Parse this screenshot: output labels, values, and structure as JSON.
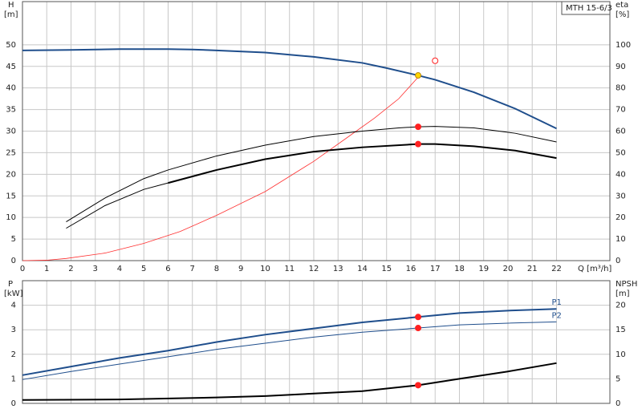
{
  "chart_data": [
    {
      "type": "line",
      "title": "MTH 15-6/3",
      "xlabel": "Q [m³/h]",
      "ylabel": "H",
      "yunit": "[m]",
      "y2label": "eta",
      "y2unit": "[%]",
      "xlim": [
        0,
        24.2
      ],
      "xticks": [
        0,
        1,
        2,
        3,
        4,
        5,
        6,
        7,
        8,
        9,
        10,
        11,
        12,
        13,
        14,
        15,
        16,
        17,
        18,
        19,
        20,
        21,
        22
      ],
      "xtick_labels": true,
      "ylim": [
        0,
        60
      ],
      "yticks": [
        0,
        5,
        10,
        15,
        20,
        25,
        30,
        35,
        40,
        45,
        50
      ],
      "y2lim": [
        0,
        120
      ],
      "y2ticks": [
        0,
        10,
        20,
        30,
        40,
        50,
        60,
        70,
        80,
        90,
        100
      ],
      "grid": true,
      "series": [
        {
          "color": "#1f4e8c",
          "width": 2,
          "axis": "y",
          "x": [
            0,
            2,
            4,
            6,
            7,
            8,
            10,
            12,
            14,
            15,
            16.3,
            17,
            18.6,
            20.3,
            22
          ],
          "values": [
            48.7,
            48.8,
            49,
            49,
            48.9,
            48.7,
            48.2,
            47.2,
            45.8,
            44.6,
            42.9,
            41.9,
            39,
            35.2,
            30.6
          ]
        },
        {
          "color": "#ff3030",
          "width": 0.8,
          "axis": "y2",
          "x": [
            0,
            1,
            1.8,
            3.4,
            5,
            6.5,
            8,
            10,
            12,
            13.5,
            14.5,
            15.5,
            16.3
          ],
          "values": [
            0,
            0.2,
            1,
            3.5,
            8,
            13.5,
            21,
            32,
            46,
            58,
            66,
            75,
            85
          ]
        },
        {
          "color": "#000000",
          "width": 1,
          "axis": "y2",
          "x": [
            1.8,
            3.4,
            5,
            6,
            8,
            10,
            12,
            14,
            15.5,
            16.3,
            17,
            18.6,
            20.3,
            22
          ],
          "values": [
            18,
            29,
            38,
            42,
            48.5,
            53.5,
            57.5,
            60,
            61.5,
            62,
            62.2,
            61.5,
            59,
            55
          ]
        },
        {
          "color": "#000000",
          "width": 1,
          "axis": "y2",
          "x": [
            1.8,
            3.4,
            5,
            6
          ],
          "values": [
            15,
            25.5,
            33,
            36
          ]
        },
        {
          "color": "#000000",
          "width": 2,
          "axis": "y2",
          "x": [
            6,
            8,
            10,
            12,
            14,
            16.3,
            17,
            18.6,
            20.3,
            22
          ],
          "values": [
            36,
            42,
            47,
            50.5,
            52.5,
            54,
            54,
            53,
            51,
            47.5
          ]
        },
        {
          "color": "#ffd700",
          "marker": "dot",
          "axis": "y",
          "x": [
            16.3
          ],
          "values": [
            42.9
          ]
        },
        {
          "color": "#ff2020",
          "marker": "dot",
          "axis": "y2",
          "x": [
            16.3,
            16.3
          ],
          "values": [
            62,
            54
          ]
        },
        {
          "color": "#ff2020",
          "marker": "hollow",
          "axis": "y",
          "x": [
            17
          ],
          "values": [
            46.3
          ]
        }
      ]
    },
    {
      "type": "line",
      "ylabel": "P",
      "yunit": "[kW]",
      "y2label": "NPSH",
      "y2unit": "[m]",
      "xlim": [
        0,
        24.2
      ],
      "xticks": [
        0,
        1,
        2,
        3,
        4,
        5,
        6,
        7,
        8,
        9,
        10,
        11,
        12,
        13,
        14,
        15,
        16,
        17,
        18,
        19,
        20,
        21,
        22
      ],
      "xtick_labels": false,
      "ylim": [
        0,
        5
      ],
      "yticks": [
        0,
        1,
        2,
        3,
        4
      ],
      "y2lim": [
        0,
        25
      ],
      "y2ticks": [
        0,
        5,
        10,
        15,
        20
      ],
      "grid": true,
      "series": [
        {
          "name": "P1",
          "color": "#1f4e8c",
          "width": 2,
          "axis": "y",
          "x": [
            0,
            2,
            4,
            6,
            8,
            10,
            12,
            14,
            16.3,
            18,
            20,
            22
          ],
          "values": [
            1.15,
            1.5,
            1.85,
            2.15,
            2.5,
            2.8,
            3.05,
            3.3,
            3.52,
            3.68,
            3.78,
            3.85
          ]
        },
        {
          "name": "P2",
          "color": "#1f4e8c",
          "width": 1,
          "axis": "y",
          "x": [
            0,
            2,
            4,
            6,
            8,
            10,
            12,
            14,
            16.3,
            18,
            20,
            22
          ],
          "values": [
            0.97,
            1.3,
            1.6,
            1.9,
            2.2,
            2.45,
            2.7,
            2.9,
            3.07,
            3.2,
            3.27,
            3.32
          ]
        },
        {
          "color": "#000000",
          "width": 2,
          "axis": "y2",
          "x": [
            0,
            4,
            8,
            10,
            12,
            14,
            16.3,
            18,
            20,
            22
          ],
          "values": [
            0.7,
            0.8,
            1.2,
            1.5,
            2,
            2.5,
            3.7,
            5,
            6.5,
            8.2
          ]
        },
        {
          "color": "#ff2020",
          "marker": "dot",
          "axis": "y",
          "x": [
            16.3,
            16.3
          ],
          "values": [
            3.52,
            3.07
          ]
        },
        {
          "color": "#ff2020",
          "marker": "dot",
          "axis": "y2",
          "x": [
            16.3
          ],
          "values": [
            3.7
          ]
        }
      ]
    }
  ]
}
